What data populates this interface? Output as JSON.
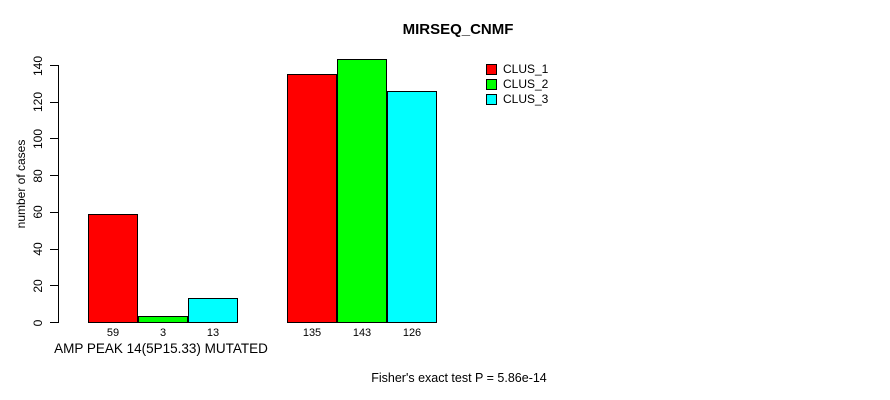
{
  "title": "MIRSEQ_CNMF",
  "footer": {
    "note": "Fisher's exact test P = 5.86e-14"
  },
  "chart_data": {
    "type": "bar",
    "grouped": true,
    "title": "MIRSEQ_CNMF",
    "categories": [
      "AMP PEAK 14(5P15.33) MUTATED",
      ""
    ],
    "series": [
      {
        "name": "CLUS_1",
        "color": "#ff0000",
        "values": [
          59,
          135
        ]
      },
      {
        "name": "CLUS_2",
        "color": "#00ff00",
        "values": [
          3,
          143
        ]
      },
      {
        "name": "CLUS_3",
        "color": "#00ffff",
        "values": [
          13,
          126
        ]
      }
    ],
    "xlabel": "AMP PEAK 14(5P15.33) MUTATED",
    "ylabel": "number of cases",
    "ylim": [
      0,
      140
    ],
    "yticks": [
      0,
      20,
      40,
      60,
      80,
      100,
      120,
      140
    ],
    "bar_value_labels": [
      [
        59,
        3,
        13
      ],
      [
        135,
        143,
        126
      ]
    ],
    "legend_position": "top-right",
    "grid": false,
    "axis_color": "#000000",
    "bar_border_color": "#000000"
  }
}
